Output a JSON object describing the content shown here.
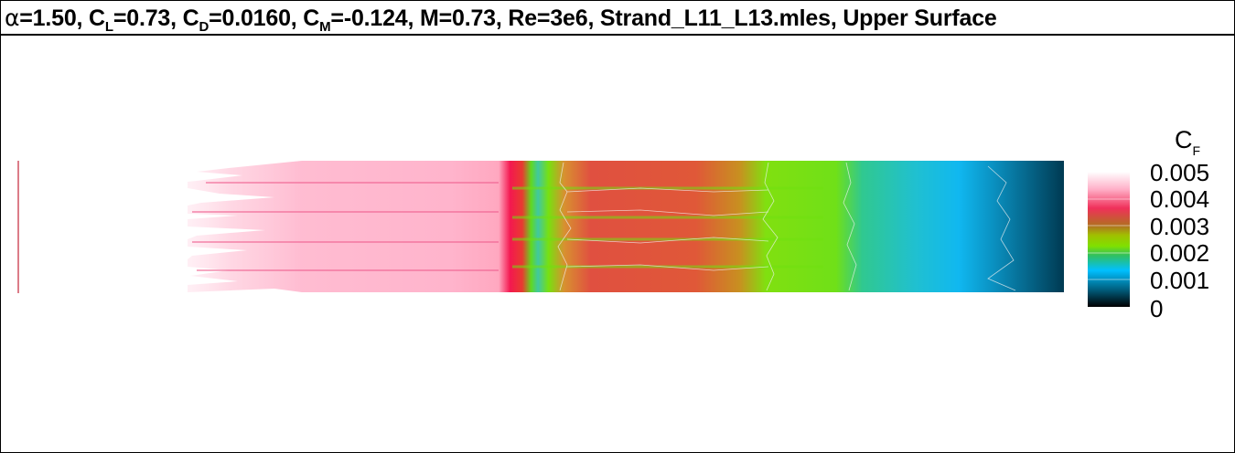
{
  "title": {
    "alpha_symbol": "α",
    "alpha_value": "=1.50, ",
    "cl_base": "C",
    "cl_sub": "L",
    "cl_value": "=0.73, ",
    "cd_base": "C",
    "cd_sub": "D",
    "cd_value": "=0.0160, ",
    "cm_base": "C",
    "cm_sub": "M",
    "cm_value": "=-0.124, M=0.73, Re=3e6, Strand_L11_L13.mles, Upper Surface"
  },
  "colorbar": {
    "variable_base": "C",
    "variable_sub": "F",
    "tick_labels": [
      "0.005",
      "0.004",
      "0.003",
      "0.002",
      "0.001",
      "0"
    ],
    "colors": [
      "#ffffff",
      "#ffb0c8",
      "#f0305a",
      "#b07020",
      "#80e000",
      "#30c060",
      "#00c0ff",
      "#006080",
      "#000000"
    ]
  },
  "surface": {
    "colors": {
      "laminar_pink": "#ffb8d0",
      "transition_red": "#f8285a",
      "turbulent_red": "#e05040",
      "green": "#70e010",
      "cyan": "#10c0e8",
      "dark_blue": "#004a66"
    }
  }
}
